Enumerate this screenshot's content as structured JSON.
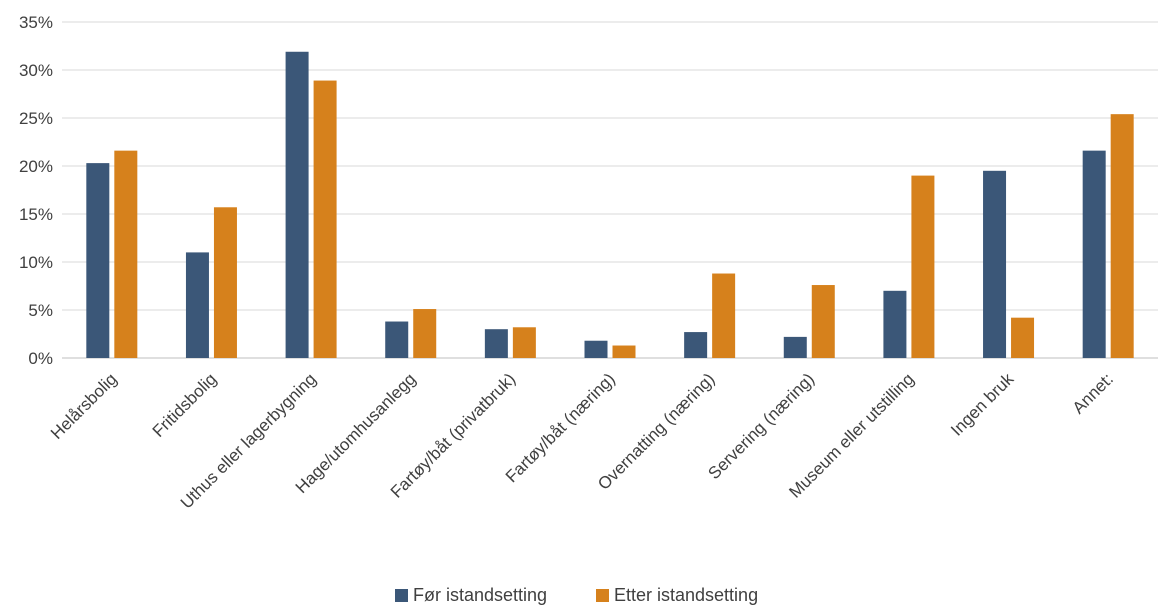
{
  "chart_data": {
    "type": "bar",
    "categories": [
      "Helårsbolig",
      "Fritidsbolig",
      "Uthus eller lagerbygning",
      "Hage/utomhusanlegg",
      "Fartøy/båt (privatbruk)",
      "Fartøy/båt (næring)",
      "Overnatting (næring)",
      "Servering (næring)",
      "Museum eller utstilling",
      "Ingen bruk",
      "Annet:"
    ],
    "series": [
      {
        "name": "Før istandsetting",
        "color": "#3b5778",
        "values": [
          20.3,
          11.0,
          31.9,
          3.8,
          3.0,
          1.8,
          2.7,
          2.2,
          7.0,
          19.5,
          21.6
        ]
      },
      {
        "name": "Etter istandsetting",
        "color": "#d6811c",
        "values": [
          21.6,
          15.7,
          28.9,
          5.1,
          3.2,
          1.3,
          8.8,
          7.6,
          19.0,
          4.2,
          25.4
        ]
      }
    ],
    "ylim": [
      0,
      35
    ],
    "yticks": [
      "0%",
      "5%",
      "10%",
      "15%",
      "20%",
      "25%",
      "30%",
      "35%"
    ],
    "grid": true,
    "legend_position": "bottom"
  }
}
